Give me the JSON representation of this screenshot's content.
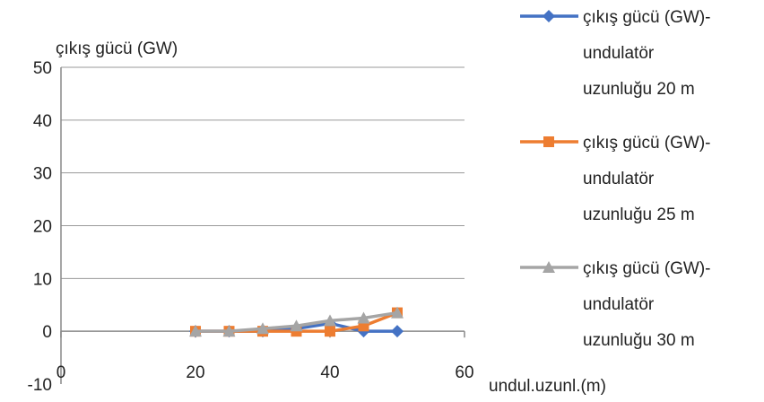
{
  "chart_data": {
    "type": "line",
    "title": "",
    "ylabel": "çıkış gücü (GW)",
    "xlabel": "undul.uzunl.(m)",
    "xlim": [
      0,
      60
    ],
    "ylim": [
      -10,
      50
    ],
    "x_ticks": [
      0,
      20,
      40,
      60
    ],
    "y_ticks": [
      50,
      40,
      30,
      20,
      10,
      0,
      -10
    ],
    "grid": "horizontal",
    "legend_position": "right",
    "series": [
      {
        "name_lines": [
          "çıkış gücü (GW)-",
          "undulatör",
          "uzunluğu 20 m"
        ],
        "color": "#4472C4",
        "marker": "diamond",
        "x": [
          20,
          25,
          30,
          35,
          40,
          45,
          50
        ],
        "y": [
          0,
          0,
          0,
          0.5,
          1.5,
          0,
          0
        ]
      },
      {
        "name_lines": [
          "çıkış gücü (GW)-",
          "undulatör",
          "uzunluğu 25 m"
        ],
        "color": "#ED7D31",
        "marker": "square",
        "x": [
          20,
          25,
          30,
          35,
          40,
          45,
          50
        ],
        "y": [
          0,
          0,
          0,
          0,
          0,
          1,
          3.5
        ]
      },
      {
        "name_lines": [
          "çıkış gücü (GW)-",
          "undulatör",
          "uzunluğu 30 m"
        ],
        "color": "#A5A5A5",
        "marker": "triangle",
        "x": [
          20,
          25,
          30,
          35,
          40,
          45,
          50
        ],
        "y": [
          0,
          0,
          0.5,
          1,
          2,
          2.5,
          3.5
        ]
      }
    ]
  }
}
